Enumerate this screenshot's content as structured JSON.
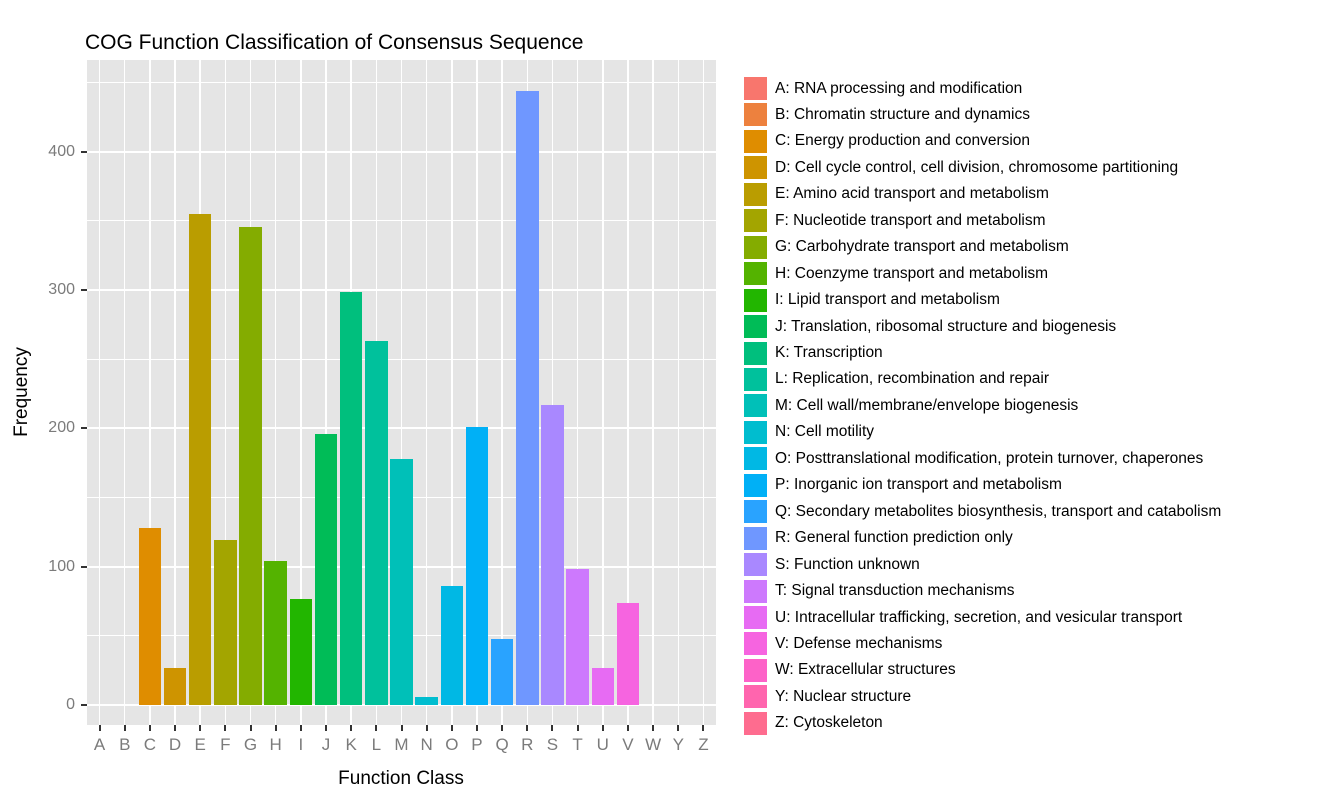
{
  "title": "COG Function Classification of Consensus Sequence",
  "chart_data": {
    "type": "bar",
    "title": "COG Function Classification of Consensus Sequence",
    "xlabel": "Function Class",
    "ylabel": "Frequency",
    "ylim": [
      -15,
      466
    ],
    "yticks": [
      0,
      100,
      200,
      300,
      400
    ],
    "minor_gridlines": [
      50,
      150,
      250,
      350,
      450
    ],
    "grid": "on",
    "legend_position": "right",
    "panel_background": "#E5E5E5",
    "grid_color": "#FFFFFF",
    "tick_label_color": "#7b7b7b",
    "categories": [
      "A",
      "B",
      "C",
      "D",
      "E",
      "F",
      "G",
      "H",
      "I",
      "J",
      "K",
      "L",
      "M",
      "N",
      "O",
      "P",
      "Q",
      "R",
      "S",
      "T",
      "U",
      "V",
      "W",
      "Y",
      "Z"
    ],
    "values": [
      0,
      0,
      128,
      27,
      355,
      119,
      346,
      104,
      77,
      196,
      299,
      263,
      178,
      6,
      86,
      201,
      48,
      444,
      217,
      98,
      27,
      74,
      0,
      0,
      0
    ],
    "colors": [
      "#F8766D",
      "#ED813E",
      "#DF8D00",
      "#CE9400",
      "#BA9D00",
      "#A3A500",
      "#84AC00",
      "#54B300",
      "#22B600",
      "#00BC57",
      "#00BF7D",
      "#00C19C",
      "#00C0B8",
      "#00BDCF",
      "#00B8E4",
      "#00B0F6",
      "#29A3FF",
      "#6F97FF",
      "#A988FF",
      "#CD79FD",
      "#E76BF3",
      "#F664E0",
      "#FD62C8",
      "#FF65AE",
      "#FE6C8F"
    ],
    "legend_labels": [
      "A: RNA processing and modification",
      "B: Chromatin structure and dynamics",
      "C: Energy production and conversion",
      "D: Cell cycle control, cell division, chromosome partitioning",
      "E: Amino acid transport and metabolism",
      "F: Nucleotide transport and metabolism",
      "G: Carbohydrate transport and metabolism",
      "H: Coenzyme transport and metabolism",
      "I: Lipid transport and metabolism",
      "J: Translation, ribosomal structure and biogenesis",
      "K: Transcription",
      "L: Replication, recombination and repair",
      "M: Cell wall/membrane/envelope biogenesis",
      "N: Cell motility",
      "O: Posttranslational modification, protein turnover, chaperones",
      "P: Inorganic ion transport and metabolism",
      "Q: Secondary metabolites biosynthesis, transport and catabolism",
      "R: General function prediction only",
      "S: Function unknown",
      "T: Signal transduction mechanisms",
      "U: Intracellular trafficking, secretion, and vesicular transport",
      "V: Defense mechanisms",
      "W: Extracellular structures",
      "Y: Nuclear structure",
      "Z: Cytoskeleton"
    ]
  }
}
